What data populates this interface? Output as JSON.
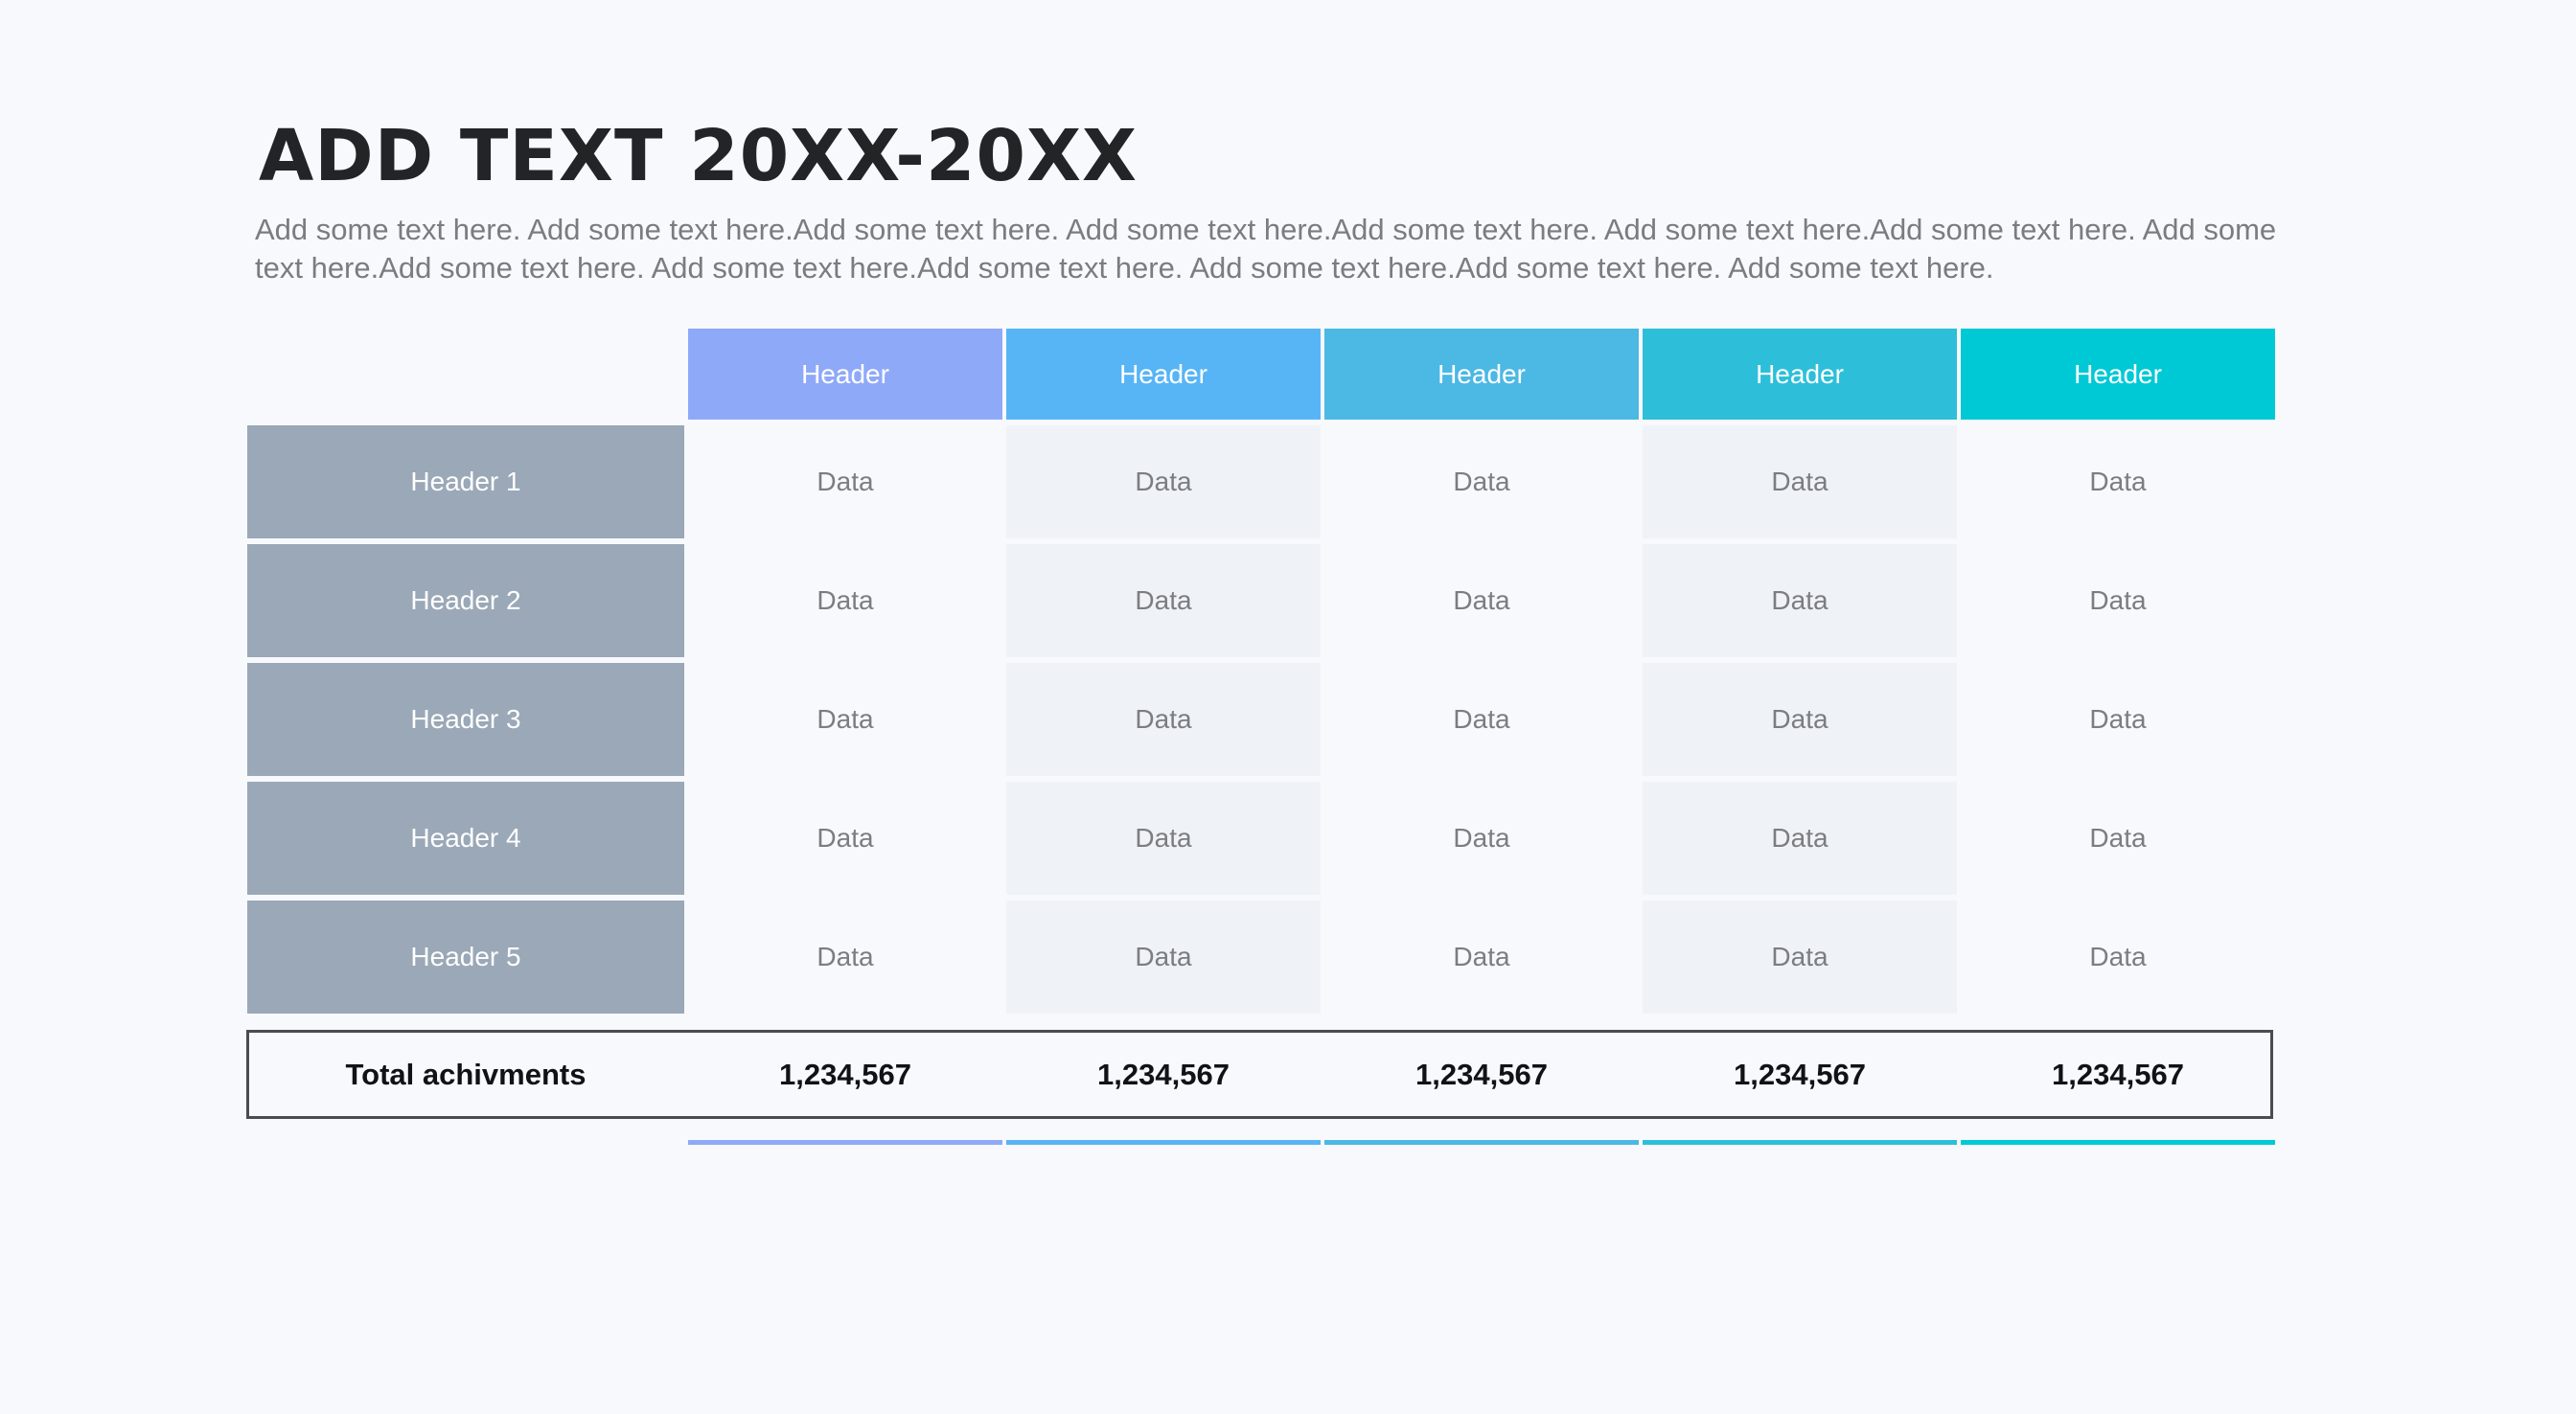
{
  "title": "ADD TEXT 20XX-20XX",
  "description": "Add some text here. Add some text here.Add some text here. Add some text here.Add some text here. Add some text here.Add some text here. Add some text here.Add some text here. Add some text here.Add some text here. Add some text here.Add some text here. Add some text here.",
  "colors": {
    "col1": "#8fa9f9",
    "col2": "#57b5f6",
    "col3": "#4cb8e4",
    "col4": "#2dbfd9",
    "col5": "#00c9d6",
    "row_header": "#9aa8b7",
    "shaded_cell": "#eff3f7",
    "background": "#f7f9fc"
  },
  "table": {
    "columns": [
      "Header",
      "Header",
      "Header",
      "Header",
      "Header"
    ],
    "rows": [
      {
        "header": "Header 1",
        "cells": [
          "Data",
          "Data",
          "Data",
          "Data",
          "Data"
        ]
      },
      {
        "header": "Header 2",
        "cells": [
          "Data",
          "Data",
          "Data",
          "Data",
          "Data"
        ]
      },
      {
        "header": "Header 3",
        "cells": [
          "Data",
          "Data",
          "Data",
          "Data",
          "Data"
        ]
      },
      {
        "header": "Header 4",
        "cells": [
          "Data",
          "Data",
          "Data",
          "Data",
          "Data"
        ]
      },
      {
        "header": "Header 5",
        "cells": [
          "Data",
          "Data",
          "Data",
          "Data",
          "Data"
        ]
      }
    ],
    "total": {
      "label": "Total achivments",
      "values": [
        "1,234,567",
        "1,234,567",
        "1,234,567",
        "1,234,567",
        "1,234,567"
      ]
    }
  }
}
